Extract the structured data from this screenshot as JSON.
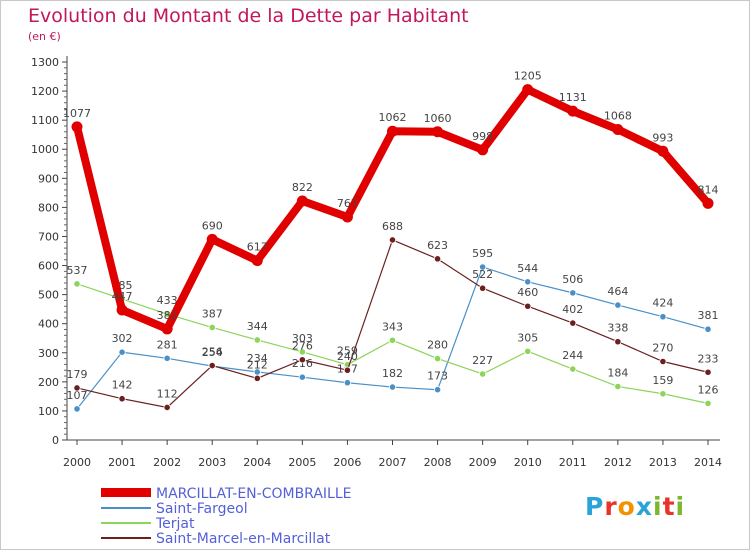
{
  "title": "Evolution du Montant de la Dette par Habitant",
  "unit": "(en €)",
  "logo": {
    "letters": [
      "P",
      "r",
      "o",
      "x",
      "i",
      "t",
      "i"
    ],
    "colors": [
      "#2aa3d8",
      "#e8332a",
      "#f39200",
      "#2aa3d8",
      "#7cb82f",
      "#e8332a",
      "#7cb82f"
    ]
  },
  "chart_data": {
    "type": "line",
    "x": [
      "2000",
      "2001",
      "2002",
      "2003",
      "2004",
      "2005",
      "2006",
      "2007",
      "2008",
      "2009",
      "2010",
      "2011",
      "2012",
      "2013",
      "2014"
    ],
    "ylim": [
      0,
      1300
    ],
    "yticks": [
      0,
      100,
      200,
      300,
      400,
      500,
      600,
      700,
      800,
      900,
      1000,
      1100,
      1200,
      1300
    ],
    "grid": false,
    "legend_position": "bottom-left",
    "series": [
      {
        "name": "MARCILLAT-EN-COMBRAILLE",
        "color": "#e10000",
        "emphasis": true,
        "values": [
          1077,
          447,
          382,
          690,
          617,
          822,
          767,
          1062,
          1060,
          998,
          1205,
          1131,
          1068,
          993,
          814
        ]
      },
      {
        "name": "Saint-Fargeol",
        "color": "#4a90c8",
        "values": [
          107,
          302,
          281,
          254,
          234,
          216,
          197,
          182,
          173,
          595,
          544,
          506,
          464,
          424,
          381
        ]
      },
      {
        "name": "Terjat",
        "color": "#8cd45a",
        "values": [
          537,
          485,
          433,
          387,
          344,
          303,
          259,
          343,
          280,
          227,
          305,
          244,
          184,
          159,
          126
        ]
      },
      {
        "name": "Saint-Marcel-en-Marcillat",
        "color": "#6b1f1f",
        "values": [
          179,
          142,
          112,
          256,
          212,
          276,
          240,
          688,
          623,
          522,
          460,
          402,
          338,
          270,
          233
        ]
      }
    ]
  }
}
